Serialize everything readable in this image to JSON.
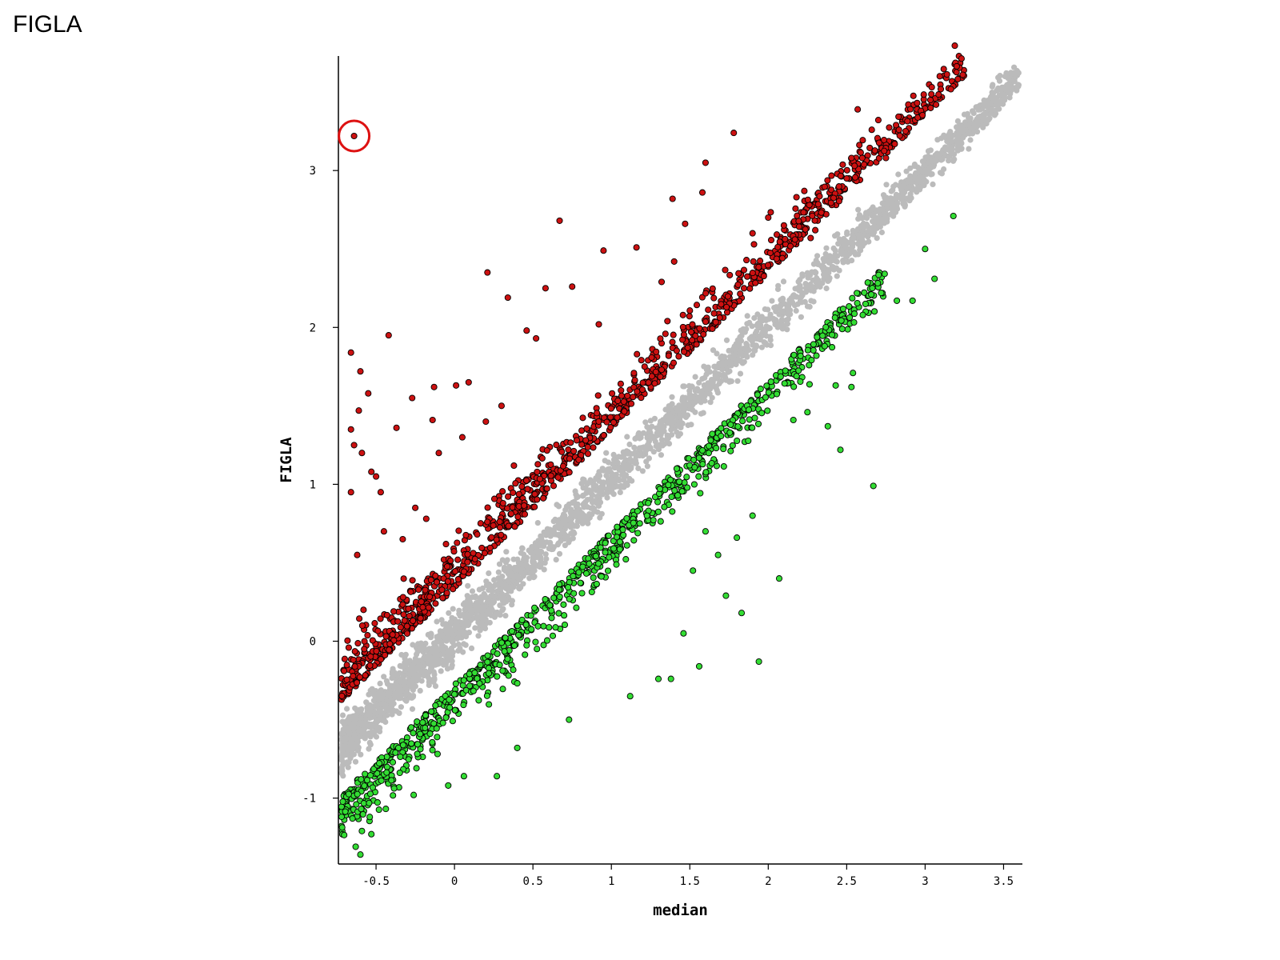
{
  "page": {
    "title": "FIGLA"
  },
  "chart_data": {
    "type": "scatter",
    "title": "",
    "xlabel": "median",
    "ylabel": "FIGLA",
    "xlim": [
      -0.74,
      3.62
    ],
    "ylim": [
      -1.42,
      3.73
    ],
    "xticks": [
      -0.5,
      0,
      0.5,
      1,
      1.5,
      2,
      2.5,
      3,
      3.5
    ],
    "xtick_labels": [
      "-0.5",
      "0",
      "0.5",
      "1",
      "1.5",
      "2",
      "2.5",
      "3",
      "3.5"
    ],
    "yticks": [
      -1,
      0,
      1,
      2,
      3
    ],
    "ytick_labels": [
      "-1",
      "0",
      "1",
      "2",
      "3"
    ],
    "grid": false,
    "legend": "none",
    "colors": {
      "up": "#cc1111",
      "down": "#33dd33",
      "neutral": "#bbbbbb",
      "highlight": "#dd1111"
    },
    "highlight": {
      "x": -0.64,
      "y": 3.22,
      "note": "circled outlier"
    },
    "series": [
      {
        "color": "#bbbbbb",
        "trend": {
          "x": [
            -0.72,
            3.6
          ],
          "y": [
            -0.67,
            3.6
          ]
        },
        "spread": 0.3
      },
      {
        "color": "#cc1111",
        "trend": {
          "x": [
            -0.72,
            3.25
          ],
          "y": [
            -0.38,
            3.6
          ]
        },
        "points": [
          [
            -0.64,
            3.22
          ],
          [
            1.78,
            3.24
          ],
          [
            2.57,
            3.39
          ],
          [
            2.66,
            3.26
          ],
          [
            3.24,
            3.61
          ],
          [
            3.07,
            3.42
          ],
          [
            1.6,
            3.05
          ],
          [
            2.53,
            3.08
          ],
          [
            2.75,
            3.08
          ],
          [
            0.67,
            2.68
          ],
          [
            1.39,
            2.82
          ],
          [
            1.58,
            2.86
          ],
          [
            2.23,
            2.87
          ],
          [
            2.18,
            2.83
          ],
          [
            0.21,
            2.35
          ],
          [
            0.95,
            2.49
          ],
          [
            1.16,
            2.51
          ],
          [
            -0.42,
            1.95
          ],
          [
            -0.66,
            1.84
          ],
          [
            0.34,
            2.19
          ],
          [
            0.58,
            2.25
          ],
          [
            0.75,
            2.26
          ],
          [
            1.47,
            2.66
          ],
          [
            -0.6,
            1.72
          ],
          [
            -0.55,
            1.58
          ],
          [
            -0.27,
            1.55
          ],
          [
            -0.13,
            1.62
          ],
          [
            0.01,
            1.63
          ],
          [
            0.09,
            1.65
          ],
          [
            -0.66,
            1.35
          ],
          [
            -0.61,
            1.47
          ],
          [
            -0.59,
            1.2
          ],
          [
            -0.53,
            1.08
          ],
          [
            -0.37,
            1.36
          ],
          [
            -0.14,
            1.41
          ],
          [
            0.46,
            1.98
          ],
          [
            0.52,
            1.93
          ],
          [
            0.92,
            2.02
          ],
          [
            1.32,
            2.29
          ],
          [
            1.4,
            2.42
          ],
          [
            2.5,
            2.95
          ],
          [
            2.55,
            3.03
          ],
          [
            1.9,
            2.6
          ],
          [
            2.0,
            2.7
          ],
          [
            2.1,
            2.65
          ],
          [
            2.27,
            2.57
          ],
          [
            2.3,
            2.62
          ],
          [
            -0.66,
            0.95
          ],
          [
            -0.64,
            1.25
          ],
          [
            -0.5,
            1.05
          ],
          [
            -0.47,
            0.95
          ],
          [
            -0.1,
            1.2
          ],
          [
            0.05,
            1.3
          ],
          [
            0.2,
            1.4
          ],
          [
            0.3,
            1.5
          ],
          [
            -0.45,
            0.7
          ],
          [
            -0.33,
            0.65
          ],
          [
            -0.25,
            0.85
          ],
          [
            -0.18,
            0.78
          ],
          [
            -0.62,
            0.55
          ],
          [
            -0.58,
            0.2
          ]
        ]
      },
      {
        "color": "#33dd33",
        "trend": {
          "x": [
            -0.72,
            2.75
          ],
          "y": [
            -0.98,
            2.4
          ]
        },
        "points": [
          [
            3.18,
            2.71
          ],
          [
            3.0,
            2.5
          ],
          [
            3.06,
            2.31
          ],
          [
            2.92,
            2.17
          ],
          [
            2.82,
            2.17
          ],
          [
            2.72,
            2.22
          ],
          [
            2.62,
            2.15
          ],
          [
            2.67,
            0.99
          ],
          [
            2.46,
            1.22
          ],
          [
            2.38,
            1.37
          ],
          [
            2.43,
            1.63
          ],
          [
            2.53,
            1.62
          ],
          [
            2.54,
            1.71
          ],
          [
            2.07,
            0.4
          ],
          [
            1.83,
            0.18
          ],
          [
            1.94,
            -0.13
          ],
          [
            1.56,
            -0.16
          ],
          [
            1.46,
            0.05
          ],
          [
            1.38,
            -0.24
          ],
          [
            1.3,
            -0.24
          ],
          [
            1.73,
            0.29
          ],
          [
            2.25,
            1.46
          ],
          [
            2.16,
            1.41
          ],
          [
            -0.63,
            -1.31
          ],
          [
            -0.6,
            -1.36
          ],
          [
            -0.59,
            -1.21
          ],
          [
            -0.53,
            -1.23
          ],
          [
            -0.54,
            -1.12
          ],
          [
            -0.65,
            -1.13
          ],
          [
            0.06,
            -0.86
          ],
          [
            0.27,
            -0.86
          ],
          [
            -0.26,
            -0.98
          ],
          [
            -0.04,
            -0.92
          ],
          [
            0.4,
            -0.68
          ],
          [
            0.73,
            -0.5
          ],
          [
            1.12,
            -0.35
          ],
          [
            1.8,
            0.66
          ],
          [
            1.9,
            0.8
          ],
          [
            1.68,
            0.55
          ],
          [
            1.52,
            0.45
          ],
          [
            1.6,
            0.7
          ]
        ]
      }
    ]
  }
}
